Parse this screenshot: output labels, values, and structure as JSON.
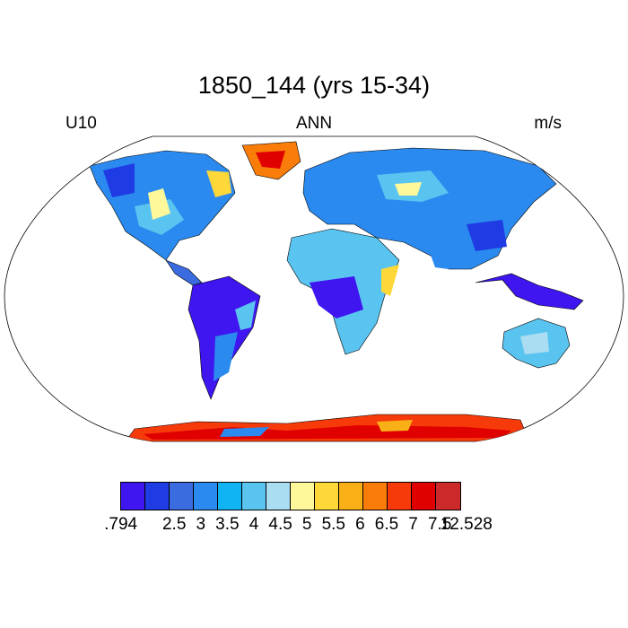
{
  "title": "1850_144 (yrs 15-34)",
  "left_label": "U10",
  "center_label": "ANN",
  "right_label": "m/s",
  "colorbar": {
    "colors": [
      "#3f16f0",
      "#1f3ce4",
      "#3a6ce0",
      "#2a8af0",
      "#10b4f2",
      "#5ac4f0",
      "#aadcf2",
      "#fff89a",
      "#fdd838",
      "#f9b016",
      "#fb7d09",
      "#f73a0a",
      "#e00000",
      "#cc2a2a"
    ],
    "labels": [
      ".794",
      "2.5",
      "3",
      "3.5",
      "4",
      "4.5",
      "5",
      "5.5",
      "6",
      "6.5",
      "7",
      "7.5",
      "12.528"
    ]
  }
}
